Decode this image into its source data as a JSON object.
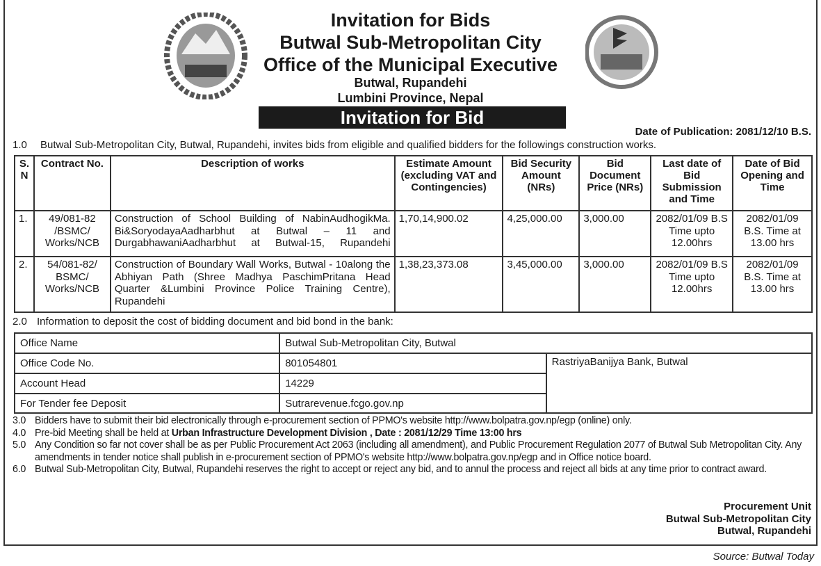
{
  "header": {
    "title": "Invitation for Bids",
    "org": "Butwal Sub-Metropolitan City",
    "office": "Office of the Municipal Executive",
    "location": "Butwal, Rupandehi",
    "province": "Lumbini Province, Nepal",
    "banner": "Invitation for Bid",
    "publication_date": "Date of Publication: 2081/12/10 B.S."
  },
  "section1": {
    "num": "1.0",
    "text": "Butwal Sub-Metropolitan City, Butwal, Rupandehi, invites bids from eligible and qualified bidders for the followings construction works."
  },
  "bids_table": {
    "headers": [
      "S. N",
      "Contract No.",
      "Description of works",
      "Estimate Amount (excluding VAT and Contingencies)",
      "Bid Security Amount (NRs)",
      "Bid Document Price (NRs)",
      "Last date of Bid Submission and Time",
      "Date of Bid Opening and Time"
    ],
    "rows": [
      {
        "sn": "1.",
        "contract": "49/081-82 /BSMC/ Works/NCB",
        "description": "Construction of School Building of NabinAudhogikMa. Bi&SoryodayaAadharbhut at Butwal – 11 and DurgabhawaniAadharbhut at Butwal-15, Rupandehi",
        "estimate": "1,70,14,900.02",
        "security": "4,25,000.00",
        "doc_price": "3,000.00",
        "last_date": "2082/01/09 B.S Time upto 12.00hrs",
        "opening": "2082/01/09 B.S. Time at 13.00 hrs"
      },
      {
        "sn": "2.",
        "contract": "54/081-82/ BSMC/ Works/NCB",
        "description": "Construction of Boundary Wall Works, Butwal - 10along the Abhiyan Path (Shree Madhya PaschimPritana Head Quarter &Lumbini Province Police Training Centre), Rupandehi",
        "estimate": "1,38,23,373.08",
        "security": "3,45,000.00",
        "doc_price": "3,000.00",
        "last_date": "2082/01/09 B.S Time upto 12.00hrs",
        "opening": "2082/01/09 B.S. Time at 13.00 hrs"
      }
    ]
  },
  "section2": {
    "num": "2.0",
    "text": "Information to deposit the cost of bidding document and bid bond in the bank:"
  },
  "bank_table": {
    "office_name_label": "Office Name",
    "office_name": "Butwal Sub-Metropolitan City, Butwal",
    "office_code_label": "Office Code No.",
    "office_code": "801054801",
    "bank": "RastriyaBanijya Bank, Butwal",
    "account_head_label": "Account Head",
    "account_head": "14229",
    "tender_fee_label": "For Tender fee Deposit",
    "tender_fee": "Sutrarevenue.fcgo.gov.np"
  },
  "notes": [
    {
      "num": "3.0",
      "text": "Bidders have to submit their bid electronically through e-procurement section of PPMO's website http://www.bolpatra.gov.np/egp  (online) only."
    },
    {
      "num": "4.0",
      "text": "Pre-bid Meeting shall be held at ",
      "bold": "Urban Infrastructure Development Division , Date : 2081/12/29 Time 13:00 hrs"
    },
    {
      "num": "5.0",
      "text": "Any Condition so far not cover shall be as per Public Procurement Act 2063 (including all amendment), and Public Procurement Regulation 2077 of Butwal Sub Metropolitan City. Any amendments in tender notice shall publish in e-procurement section of PPMO's website http://www.bolpatra.gov.np/egp and in Office notice board."
    },
    {
      "num": "6.0",
      "text": "Butwal Sub-Metropolitan City, Butwal, Rupandehi reserves the right to accept or reject any bid, and to annul the process and reject all bids at any time prior to contract award."
    }
  ],
  "signature": {
    "line1": "Procurement Unit",
    "line2": "Butwal Sub-Metropolitan City",
    "line3": "Butwal, Rupandehi"
  },
  "source": "Source: Butwal Today"
}
